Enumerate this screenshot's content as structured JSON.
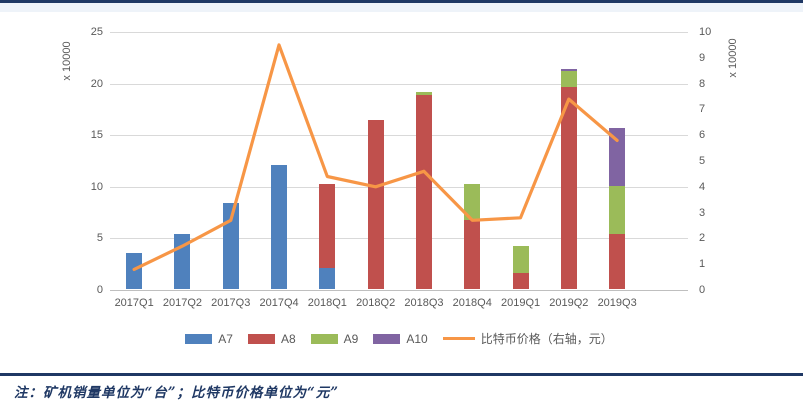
{
  "note": {
    "text": "注：矿机销量单位为“台”；比特币价格单位为“元”"
  },
  "colors": {
    "accent_navy": "#1F3864",
    "grid": "#d9d9d9",
    "axis_line": "#bfbfbf",
    "axis_text": "#595959"
  },
  "chart_data": {
    "type": "bar",
    "subtype": "stacked-bar-with-line",
    "categories": [
      "2017Q1",
      "2017Q2",
      "2017Q3",
      "2017Q4",
      "2018Q1",
      "2018Q2",
      "2018Q3",
      "2018Q4",
      "2019Q1",
      "2019Q2",
      "2019Q3"
    ],
    "series": [
      {
        "name": "A7",
        "type": "bar",
        "color": "#4F81BD",
        "axis": "left",
        "values": [
          3.5,
          5.3,
          8.3,
          12.0,
          2.0,
          0,
          0,
          0,
          0,
          0,
          0
        ]
      },
      {
        "name": "A8",
        "type": "bar",
        "color": "#C0504D",
        "axis": "left",
        "values": [
          0,
          0,
          0,
          0,
          8.2,
          16.4,
          18.8,
          6.7,
          1.6,
          19.6,
          5.3
        ]
      },
      {
        "name": "A9",
        "type": "bar",
        "color": "#9BBB59",
        "axis": "left",
        "values": [
          0,
          0,
          0,
          0,
          0,
          0,
          0.3,
          3.5,
          2.6,
          1.5,
          4.7
        ]
      },
      {
        "name": "A10",
        "type": "bar",
        "color": "#8064A2",
        "axis": "left",
        "values": [
          0,
          0,
          0,
          0,
          0,
          0,
          0,
          0,
          0,
          0.2,
          5.6
        ]
      },
      {
        "name": "比特币价格（右轴，元）",
        "type": "line",
        "color": "#F79646",
        "axis": "right",
        "values": [
          0.8,
          1.7,
          2.7,
          9.5,
          4.4,
          4.0,
          4.6,
          2.7,
          2.8,
          7.4,
          5.8
        ]
      }
    ],
    "left_axis": {
      "label": "x 10000",
      "min": 0,
      "max": 25,
      "step": 5,
      "gridlines": true
    },
    "right_axis": {
      "label": "x 10000",
      "min": 0,
      "max": 10,
      "step": 1,
      "gridlines": false
    },
    "legend_position": "bottom",
    "title": ""
  }
}
